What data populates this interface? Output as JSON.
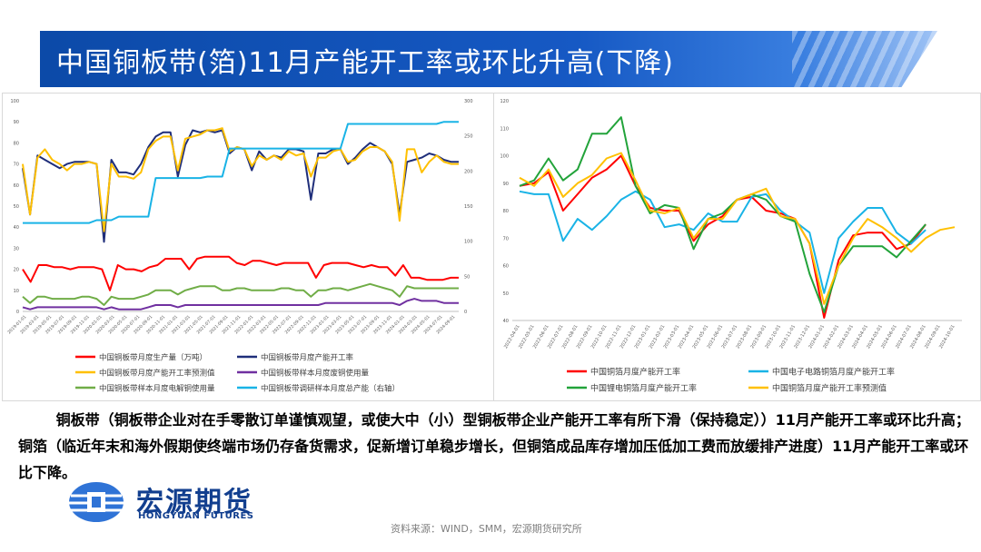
{
  "title": "中国铜板带(箔)11月产能开工率或环比升高(下降)",
  "body": {
    "paragraph1": "铜板带（铜板带企业对在手零散订单谨慎观望，或使大中（小）型铜板带企业产能开工率有所下滑（保持稳定））11月产能开工率或环比升高；铜箔（临近年末和海外假期使终端市场仍存备货需求，促新增订单稳步增长，但铜箔成品库存增加压低加工费而放缓排产进度）11月产能开工率或环比下降。"
  },
  "logo": {
    "name_cn": "宏源期货",
    "name_en": "HONGYUAN FUTURES"
  },
  "source": "资料来源：WIND，SMM，宏源期货研究所",
  "colors": {
    "title_bg": "#1659c4",
    "red": "#ff0000",
    "navy": "#1f2e7a",
    "yellow": "#ffc000",
    "purple": "#7030a0",
    "green": "#70ad47",
    "skyblue": "#19b3e6",
    "green2": "#22a33a",
    "logo": "#123f8f"
  },
  "chart_data": [
    {
      "type": "line",
      "title": "",
      "left_axis": {
        "ylim": [
          0,
          100
        ],
        "ticks": [
          "0",
          "10",
          "20",
          "30",
          "40",
          "50",
          "60",
          "70",
          "80",
          "90",
          "100"
        ]
      },
      "right_axis": {
        "ylim": [
          0,
          300
        ],
        "ticks": [
          "0",
          "50",
          "100",
          "150",
          "200",
          "250",
          "300"
        ]
      },
      "x_tick_labels": [
        "2019-01-01",
        "2019-03-01",
        "2019-05-01",
        "2019-07-01",
        "2019-09-01",
        "2019-11-01",
        "2020-01-01",
        "2020-03-01",
        "2020-05-01",
        "2020-07-01",
        "2020-09-01",
        "2020-11-01",
        "2021-01-01",
        "2021-03-01",
        "2021-05-01",
        "2021-07-01",
        "2021-09-01",
        "2021-11-01",
        "2022-01-01",
        "2022-03-01",
        "2022-05-01",
        "2022-07-01",
        "2022-09-01",
        "2022-11-01",
        "2023-01-01",
        "2023-03-01",
        "2023-05-01",
        "2023-07-01",
        "2023-09-01",
        "2023-11-01",
        "2024-01-01",
        "2024-03-01",
        "2024-05-01",
        "2024-07-01",
        "2024-09-01"
      ],
      "legend": [
        "中国铜板带月度生产量（万吨）",
        "中国铜板带月度产能开工率",
        "中国铜板带月度产能开工率预测值",
        "中国铜板带样本月度废铜使用量",
        "中国铜板带样本月度电解铜使用量",
        "中国铜板带调研样本月度总产能（右轴）"
      ],
      "series": [
        {
          "name": "中国铜板带月度生产量（万吨）",
          "color": "#ff0000",
          "axis": "left",
          "values": [
            20,
            14,
            22,
            22,
            21,
            21,
            20,
            21,
            21,
            21,
            20,
            10,
            22,
            20,
            20,
            19,
            21,
            22,
            25,
            25,
            25,
            20,
            25,
            26,
            26,
            26,
            26,
            23,
            22,
            24,
            24,
            23,
            22,
            23,
            23,
            23,
            23,
            16,
            22,
            23,
            23,
            23,
            22,
            21,
            22,
            21,
            21,
            17,
            22,
            16,
            16,
            15,
            15,
            15,
            16,
            16
          ]
        },
        {
          "name": "中国铜板带月度产能开工率",
          "color": "#1f2e7a",
          "axis": "left",
          "values": [
            68,
            46,
            74,
            72,
            70,
            68,
            70,
            71,
            71,
            71,
            70,
            33,
            72,
            66,
            66,
            65,
            70,
            78,
            83,
            85,
            85,
            64,
            79,
            86,
            85,
            86,
            85,
            86,
            75,
            78,
            77,
            67,
            76,
            72,
            74,
            73,
            77,
            77,
            76,
            53,
            75,
            75,
            77,
            77,
            70,
            73,
            77,
            80,
            78,
            76,
            70,
            46,
            71,
            72,
            73,
            75,
            74,
            72,
            71,
            71
          ]
        },
        {
          "name": "中国铜板带月度产能开工率预测值",
          "color": "#ffc000",
          "axis": "left",
          "values": [
            70,
            46,
            73,
            77,
            72,
            70,
            67,
            70,
            70,
            71,
            70,
            38,
            70,
            64,
            64,
            63,
            66,
            77,
            81,
            83,
            83,
            67,
            82,
            83,
            84,
            86,
            86,
            87,
            76,
            78,
            77,
            69,
            74,
            72,
            74,
            72,
            76,
            74,
            75,
            64,
            73,
            73,
            76,
            77,
            71,
            72,
            76,
            78,
            78,
            76,
            71,
            43,
            77,
            77,
            66,
            71,
            74,
            71,
            70,
            70
          ]
        },
        {
          "name": "中国铜板带样本月度废铜使用量",
          "color": "#7030a0",
          "axis": "left",
          "values": [
            2,
            1,
            2,
            2,
            2,
            2,
            2,
            2,
            2,
            2,
            2,
            1,
            2,
            1,
            1,
            1,
            1,
            2,
            3,
            3,
            3,
            2,
            3,
            3,
            3,
            3,
            3,
            3,
            3,
            3,
            3,
            3,
            3,
            3,
            3,
            3,
            3,
            3,
            3,
            3,
            3,
            4,
            4,
            4,
            4,
            4,
            4,
            4,
            4,
            4,
            4,
            3,
            5,
            6,
            5,
            5,
            5,
            4,
            4,
            4
          ]
        },
        {
          "name": "中国铜板带样本月度电解铜使用量",
          "color": "#70ad47",
          "axis": "left",
          "values": [
            7,
            4,
            7,
            7,
            6,
            6,
            6,
            6,
            7,
            7,
            6,
            3,
            7,
            6,
            6,
            6,
            7,
            8,
            10,
            10,
            10,
            8,
            10,
            11,
            12,
            12,
            12,
            10,
            10,
            11,
            11,
            10,
            10,
            10,
            10,
            11,
            11,
            10,
            10,
            7,
            10,
            10,
            11,
            11,
            10,
            11,
            12,
            13,
            12,
            11,
            10,
            7,
            12,
            11,
            11,
            11,
            11,
            11,
            11,
            11
          ]
        },
        {
          "name": "中国铜板带调研样本月度总产能（右轴）",
          "color": "#19b3e6",
          "axis": "right",
          "values": [
            126,
            126,
            126,
            126,
            126,
            126,
            126,
            126,
            126,
            126,
            130,
            130,
            130,
            135,
            135,
            135,
            135,
            135,
            190,
            190,
            190,
            190,
            190,
            190,
            190,
            192,
            192,
            192,
            232,
            232,
            232,
            232,
            232,
            232,
            232,
            232,
            232,
            232,
            232,
            232,
            232,
            232,
            232,
            232,
            267,
            267,
            267,
            267,
            267,
            267,
            267,
            267,
            267,
            267,
            267,
            267,
            267,
            270,
            270,
            270
          ]
        }
      ]
    },
    {
      "type": "line",
      "title": "",
      "ylim": [
        40,
        120
      ],
      "y_ticks": [
        "40",
        "50",
        "60",
        "70",
        "80",
        "90",
        "100",
        "110",
        "120"
      ],
      "x_tick_labels": [
        "2022-04-01",
        "2022-05-01",
        "2022-06-01",
        "2022-07-01",
        "2022-08-01",
        "2022-09-01",
        "2022-10-01",
        "2022-11-01",
        "2022-12-01",
        "2023-01-01",
        "2023-02-01",
        "2023-03-01",
        "2023-04-01",
        "2023-05-01",
        "2023-06-01",
        "2023-07-01",
        "2023-08-01",
        "2023-09-01",
        "2023-10-01",
        "2023-11-01",
        "2023-12-01",
        "2024-01-01",
        "2024-02-01",
        "2024-03-01",
        "2024-04-01",
        "2024-05-01",
        "2024-06-01",
        "2024-07-01",
        "2024-08-01",
        "2024-09-01",
        "2024-10-01"
      ],
      "legend": [
        "中国铜箔月度产能开工率",
        "中国电子电路铜箔月度产能开工率",
        "中国锂电铜箔月度产能开工率",
        "中国铜箔月度产能开工率预测值"
      ],
      "series": [
        {
          "name": "中国铜箔月度产能开工率",
          "color": "#ff0000",
          "values": [
            89,
            90,
            94,
            80,
            86,
            92,
            95,
            100,
            89,
            81,
            80,
            80,
            69,
            75,
            78,
            84,
            85,
            80,
            79,
            77,
            68,
            41,
            62,
            71,
            72,
            72,
            66,
            68,
            75,
            null,
            null
          ]
        },
        {
          "name": "中国电子电路铜箔月度产能开工率",
          "color": "#19b3e6",
          "values": [
            87,
            86,
            86,
            69,
            77,
            73,
            78,
            84,
            87,
            84,
            74,
            75,
            73,
            79,
            76,
            76,
            85,
            86,
            80,
            76,
            72,
            50,
            70,
            76,
            81,
            81,
            72,
            68,
            73,
            null,
            null
          ]
        },
        {
          "name": "中国锂电铜箔月度产能开工率",
          "color": "#22a33a",
          "values": [
            89,
            91,
            99,
            91,
            95,
            108,
            108,
            114,
            89,
            79,
            82,
            81,
            66,
            77,
            79,
            84,
            86,
            84,
            78,
            76,
            57,
            43,
            60,
            67,
            67,
            67,
            63,
            69,
            75,
            null,
            null
          ]
        },
        {
          "name": "中国铜箔月度产能开工率预测值",
          "color": "#ffc000",
          "values": [
            92,
            89,
            95,
            85,
            90,
            93,
            99,
            101,
            91,
            80,
            79,
            81,
            70,
            77,
            77,
            84,
            86,
            88,
            78,
            77,
            68,
            46,
            60,
            70,
            77,
            74,
            70,
            65,
            70,
            73,
            74
          ]
        }
      ]
    }
  ]
}
